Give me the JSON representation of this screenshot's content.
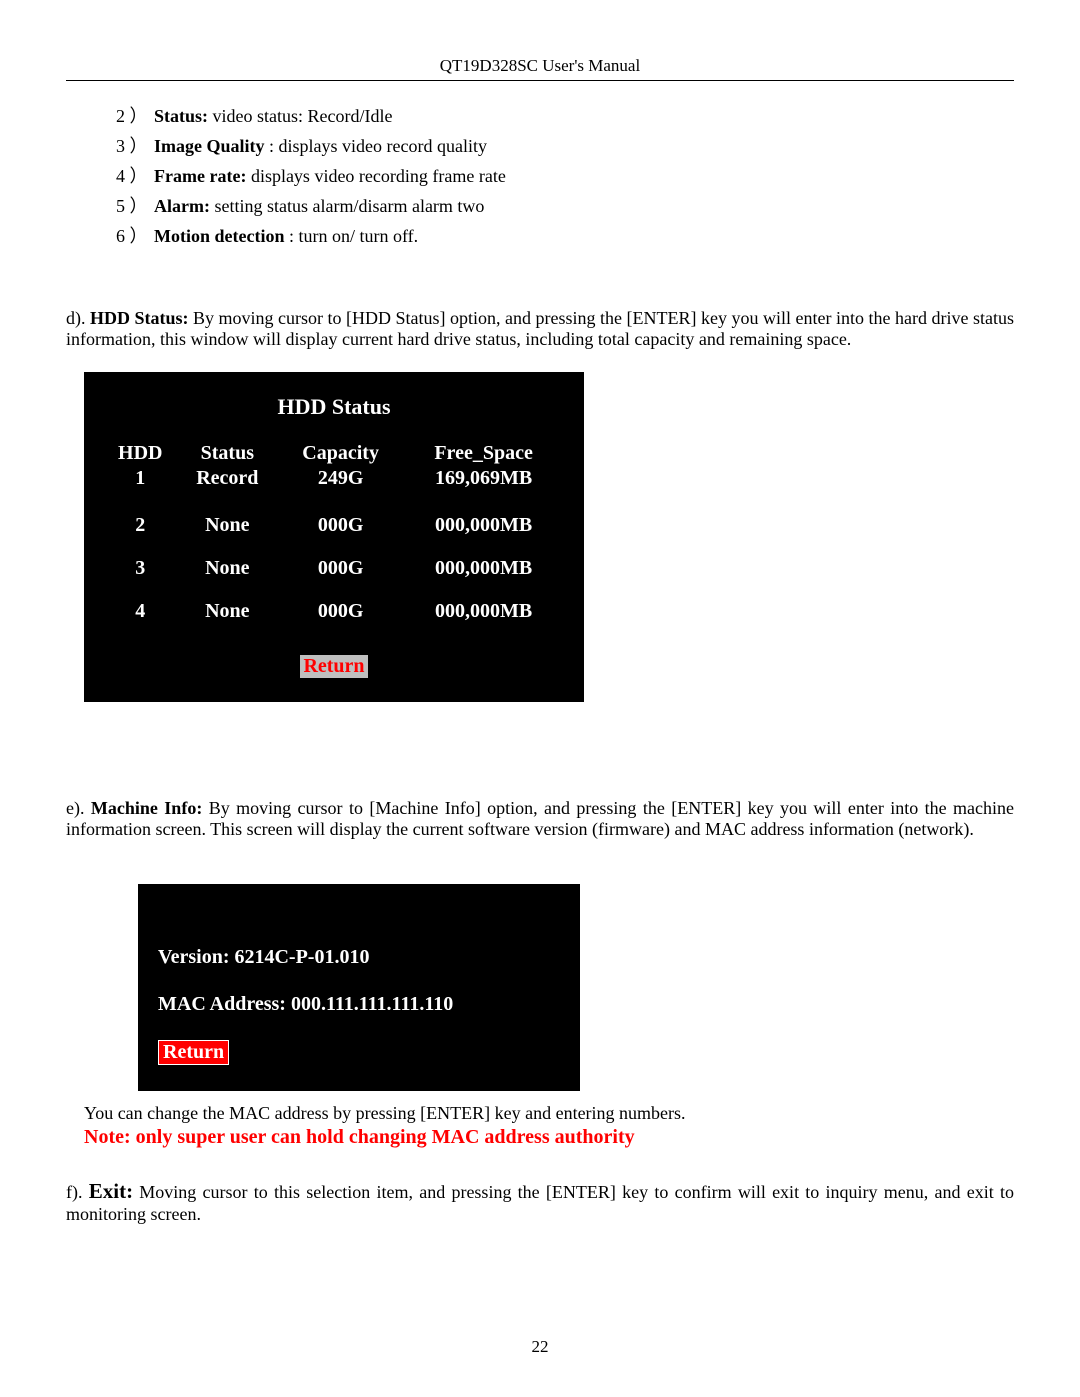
{
  "doc": {
    "header": "QT19D328SC User's Manual",
    "page_number": "22"
  },
  "list": {
    "items": [
      {
        "num": "2",
        "paren": "）",
        "label": "Status:",
        "text": " video status: Record/Idle"
      },
      {
        "num": "3",
        "paren": "）",
        "label": "Image Quality",
        "text": ": displays video record quality"
      },
      {
        "num": "4",
        "paren": "）",
        "label": "Frame rate:",
        "text": " displays video recording frame rate"
      },
      {
        "num": "5",
        "paren": "）",
        "label": "Alarm:",
        "text": " setting status alarm/disarm alarm two"
      },
      {
        "num": "6",
        "paren": "）",
        "label": "Motion detection",
        "text": ": turn on/ turn off."
      }
    ]
  },
  "sections": {
    "d_prefix": "d).  ",
    "d_lead": "HDD Status:",
    "d_body": " By moving cursor to [HDD Status] option, and pressing the [ENTER] key you will enter into the hard drive status information, this window will display current hard drive status, including total capacity and remaining space.",
    "e_prefix": "e). ",
    "e_lead": "Machine Info:",
    "e_body": " By moving cursor to [Machine Info] option, and pressing the [ENTER] key you will enter into the machine information screen. This screen will display the current software version (firmware) and MAC address information (network).",
    "post_info": "You can change the MAC address by pressing [ENTER] key and entering numbers.",
    "note": "Note: only super user can hold changing MAC address authority",
    "f_prefix": "f).  ",
    "f_lead": "Exit:",
    "f_body": " Moving cursor to this selection item, and pressing the [ENTER] key to confirm will exit to inquiry menu, and exit to monitoring screen."
  },
  "hdd_window": {
    "title": "HDD Status",
    "headers": {
      "c1": "HDD",
      "c2": "Status",
      "c3": "Capacity",
      "c4": "Free_Space"
    },
    "row1": {
      "c1": "1",
      "c2": "Record",
      "c3": "249G",
      "c4": "169,069MB"
    },
    "rows": [
      {
        "c1": "2",
        "c2": "None",
        "c3": "000G",
        "c4": "000,000MB"
      },
      {
        "c1": "3",
        "c2": "None",
        "c3": "000G",
        "c4": "000,000MB"
      },
      {
        "c1": "4",
        "c2": "None",
        "c3": "000G",
        "c4": "000,000MB"
      }
    ],
    "return_label": "Return",
    "return_bg": "#bfbfbf",
    "return_color": "#ff0000"
  },
  "info_window": {
    "version_line": "Version: 6214C-P-01.010",
    "mac_line": "MAC Address: 000.111.111.111.110",
    "return_label": "Return",
    "return_bg": "#ff0000",
    "return_color": "#ffffff"
  },
  "colors": {
    "page_bg": "#ffffff",
    "text": "#000000",
    "window_bg": "#000000",
    "window_text": "#ffffff",
    "note_red": "#ff0000"
  }
}
